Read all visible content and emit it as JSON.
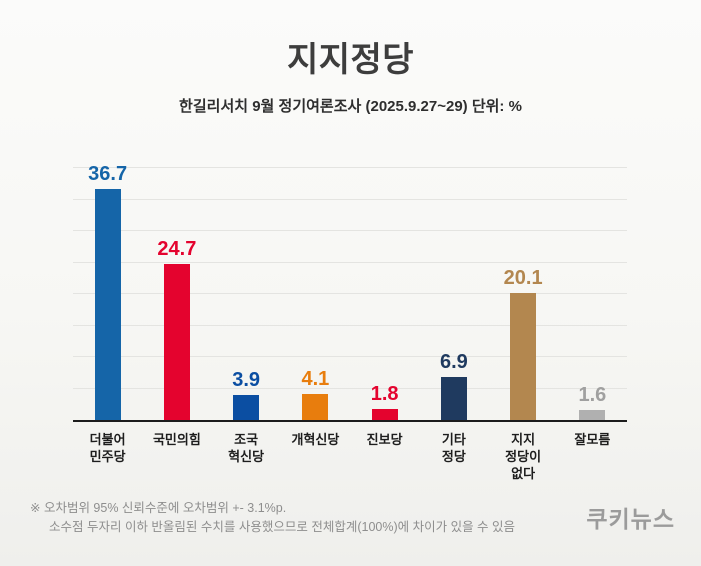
{
  "header": {
    "title": "지지정당",
    "subtitle": "한길리서치 9월 정기여론조사 (2025.9.27~29) 단위: %"
  },
  "chart_data": {
    "type": "bar",
    "title": "지지정당",
    "subtitle": "한길리서치 9월 정기여론조사 (2025.9.27~29)",
    "unit": "%",
    "categories": [
      "더불어\n민주당",
      "국민의힘",
      "조국\n혁신당",
      "개혁신당",
      "진보당",
      "기타\n정당",
      "지지\n정당이\n없다",
      "잘모름"
    ],
    "values": [
      36.7,
      24.7,
      3.9,
      4.1,
      1.8,
      6.9,
      20.1,
      1.6
    ],
    "colors": [
      "#1565a8",
      "#e4032e",
      "#0b4ea2",
      "#e87d0d",
      "#e4032e",
      "#1f3a5f",
      "#b3874f",
      "#b0b0b0"
    ],
    "label_colors": [
      "#1565a8",
      "#e4032e",
      "#0b4ea2",
      "#e87d0d",
      "#e4032e",
      "#1f3a5f",
      "#b3874f",
      "#a0a0a0"
    ],
    "xlabel": "",
    "ylabel": "",
    "ylim": [
      0,
      40
    ],
    "grid": true,
    "grid_step": 5,
    "legend": false
  },
  "footnote": {
    "line1": "※ 오차범위 95% 신뢰수준에 오차범위 +- 3.1%p.",
    "line2": "소수점 두자리 이하 반올림된 수치를 사용했으므로 전체합계(100%)에 차이가 있을 수 있음"
  },
  "logo": "쿠키뉴스"
}
